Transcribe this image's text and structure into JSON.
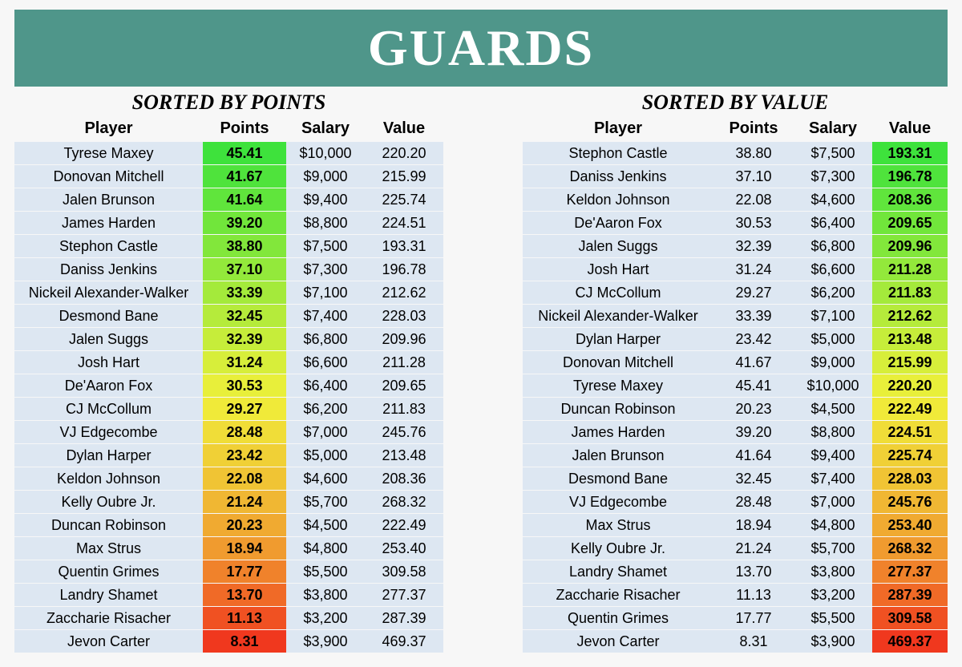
{
  "title": "GUARDS",
  "tables": [
    {
      "subtitle": "SORTED BY POINTS",
      "columns": [
        "Player",
        "Points",
        "Salary",
        "Value"
      ],
      "rows": [
        [
          "Tyrese Maxey",
          "45.41",
          "$10,000",
          "220.20"
        ],
        [
          "Donovan Mitchell",
          "41.67",
          "$9,000",
          "215.99"
        ],
        [
          "Jalen Brunson",
          "41.64",
          "$9,400",
          "225.74"
        ],
        [
          "James Harden",
          "39.20",
          "$8,800",
          "224.51"
        ],
        [
          "Stephon Castle",
          "38.80",
          "$7,500",
          "193.31"
        ],
        [
          "Daniss Jenkins",
          "37.10",
          "$7,300",
          "196.78"
        ],
        [
          "Nickeil Alexander-Walker",
          "33.39",
          "$7,100",
          "212.62"
        ],
        [
          "Desmond Bane",
          "32.45",
          "$7,400",
          "228.03"
        ],
        [
          "Jalen Suggs",
          "32.39",
          "$6,800",
          "209.96"
        ],
        [
          "Josh Hart",
          "31.24",
          "$6,600",
          "211.28"
        ],
        [
          "De'Aaron Fox",
          "30.53",
          "$6,400",
          "209.65"
        ],
        [
          "CJ McCollum",
          "29.27",
          "$6,200",
          "211.83"
        ],
        [
          "VJ Edgecombe",
          "28.48",
          "$7,000",
          "245.76"
        ],
        [
          "Dylan Harper",
          "23.42",
          "$5,000",
          "213.48"
        ],
        [
          "Keldon Johnson",
          "22.08",
          "$4,600",
          "208.36"
        ],
        [
          "Kelly Oubre Jr.",
          "21.24",
          "$5,700",
          "268.32"
        ],
        [
          "Duncan Robinson",
          "20.23",
          "$4,500",
          "222.49"
        ],
        [
          "Max Strus",
          "18.94",
          "$4,800",
          "253.40"
        ],
        [
          "Quentin Grimes",
          "17.77",
          "$5,500",
          "309.58"
        ],
        [
          "Landry Shamet",
          "13.70",
          "$3,800",
          "277.37"
        ],
        [
          "Zaccharie Risacher",
          "11.13",
          "$3,200",
          "287.39"
        ],
        [
          "Jevon Carter",
          "8.31",
          "$3,900",
          "469.37"
        ]
      ]
    },
    {
      "subtitle": "SORTED BY VALUE",
      "columns": [
        "Player",
        "Points",
        "Salary",
        "Value"
      ],
      "rows": [
        [
          "Stephon Castle",
          "38.80",
          "$7,500",
          "193.31"
        ],
        [
          "Daniss Jenkins",
          "37.10",
          "$7,300",
          "196.78"
        ],
        [
          "Keldon Johnson",
          "22.08",
          "$4,600",
          "208.36"
        ],
        [
          "De'Aaron Fox",
          "30.53",
          "$6,400",
          "209.65"
        ],
        [
          "Jalen Suggs",
          "32.39",
          "$6,800",
          "209.96"
        ],
        [
          "Josh Hart",
          "31.24",
          "$6,600",
          "211.28"
        ],
        [
          "CJ McCollum",
          "29.27",
          "$6,200",
          "211.83"
        ],
        [
          "Nickeil Alexander-Walker",
          "33.39",
          "$7,100",
          "212.62"
        ],
        [
          "Dylan Harper",
          "23.42",
          "$5,000",
          "213.48"
        ],
        [
          "Donovan Mitchell",
          "41.67",
          "$9,000",
          "215.99"
        ],
        [
          "Tyrese Maxey",
          "45.41",
          "$10,000",
          "220.20"
        ],
        [
          "Duncan Robinson",
          "20.23",
          "$4,500",
          "222.49"
        ],
        [
          "James Harden",
          "39.20",
          "$8,800",
          "224.51"
        ],
        [
          "Jalen Brunson",
          "41.64",
          "$9,400",
          "225.74"
        ],
        [
          "Desmond Bane",
          "32.45",
          "$7,400",
          "228.03"
        ],
        [
          "VJ Edgecombe",
          "28.48",
          "$7,000",
          "245.76"
        ],
        [
          "Max Strus",
          "18.94",
          "$4,800",
          "253.40"
        ],
        [
          "Kelly Oubre Jr.",
          "21.24",
          "$5,700",
          "268.32"
        ],
        [
          "Landry Shamet",
          "13.70",
          "$3,800",
          "277.37"
        ],
        [
          "Zaccharie Risacher",
          "11.13",
          "$3,200",
          "287.39"
        ],
        [
          "Quentin Grimes",
          "17.77",
          "$5,500",
          "309.58"
        ],
        [
          "Jevon Carter",
          "8.31",
          "$3,900",
          "469.37"
        ]
      ]
    }
  ]
}
